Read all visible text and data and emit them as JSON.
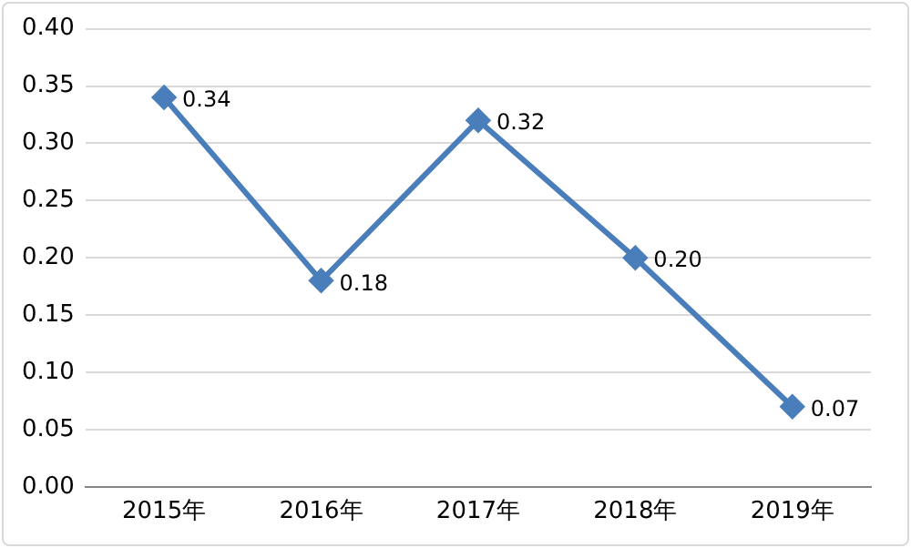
{
  "chart_data": {
    "type": "line",
    "categories": [
      "2015年",
      "2016年",
      "2017年",
      "2018年",
      "2019年"
    ],
    "series": [
      {
        "color": "#4a7ebb",
        "values": [
          0.34,
          0.18,
          0.32,
          0.2,
          0.07
        ],
        "value_labels": [
          "0.34",
          "0.18",
          "0.32",
          "0.20",
          "0.07"
        ]
      }
    ],
    "ylim": [
      0,
      0.4
    ],
    "yticks": [
      {
        "value": 0,
        "label": "0.00"
      },
      {
        "value": 0.05,
        "label": "0.05"
      },
      {
        "value": 0.1,
        "label": "0.10"
      },
      {
        "value": 0.15,
        "label": "0.15"
      },
      {
        "value": 0.2,
        "label": "0.20"
      },
      {
        "value": 0.25,
        "label": "0.25"
      },
      {
        "value": 0.3,
        "label": "0.30"
      },
      {
        "value": 0.35,
        "label": "0.35"
      },
      {
        "value": 0.4,
        "label": "0.40"
      }
    ],
    "grid": "y",
    "marker": "diamond",
    "line_style": "solid"
  }
}
